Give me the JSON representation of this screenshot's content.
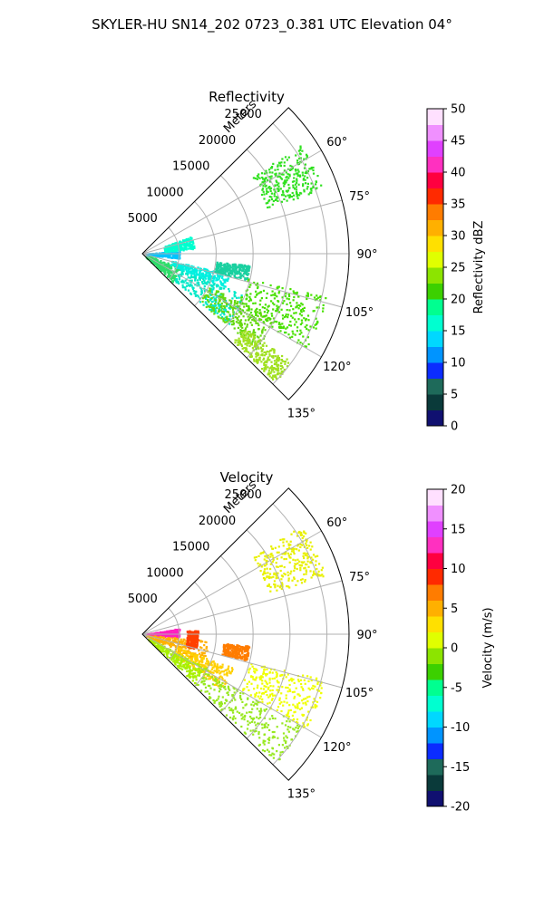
{
  "figure_title": "SKYLER-HU  SN14_202  0723_0.381 UTC Elevation 04°",
  "range_axis_label": "Meters",
  "chart_data": [
    {
      "type": "polar-sector",
      "title": "Reflectivity",
      "theta_range_deg": [
        45,
        135
      ],
      "theta_ticks": [
        "60°",
        "75°",
        "90°",
        "105°",
        "120°",
        "135°"
      ],
      "r_range_m": [
        0,
        28000
      ],
      "r_ticks": [
        "5000",
        "10000",
        "15000",
        "20000",
        "25000"
      ],
      "grid": true,
      "colorbar": {
        "label": "Reflectivity dBZ",
        "range": [
          0,
          50
        ],
        "ticks": [
          "0",
          "5",
          "10",
          "15",
          "20",
          "25",
          "30",
          "35",
          "40",
          "45",
          "50"
        ],
        "palette": [
          "#101070",
          "#0a3a3a",
          "#1e6a5a",
          "#0b2cff",
          "#0094ff",
          "#00d8ff",
          "#00ffd0",
          "#00ff90",
          "#3cd000",
          "#8ce400",
          "#e0ff00",
          "#ffe000",
          "#ffb000",
          "#ff7c00",
          "#ff2a00",
          "#ff0040",
          "#ff30c0",
          "#e040ff",
          "#f090ff",
          "#ffe0ff"
        ]
      },
      "regions": [
        {
          "theta": [
            108,
            133
          ],
          "r": [
            500,
            5500
          ],
          "color": "#2fdc6a"
        },
        {
          "theta": [
            112,
            130
          ],
          "r": [
            5500,
            15000
          ],
          "color": "#00e8c8"
        },
        {
          "theta": [
            116,
            130
          ],
          "r": [
            10000,
            20000
          ],
          "color": "#66d810"
        },
        {
          "theta": [
            126,
            134
          ],
          "r": [
            17000,
            25000
          ],
          "color": "#a0e020"
        },
        {
          "theta": [
            103,
            112
          ],
          "r": [
            4000,
            12000
          ],
          "color": "#00f0e0"
        },
        {
          "theta": [
            84,
            97
          ],
          "r": [
            500,
            5000
          ],
          "color": "#00c4ff"
        },
        {
          "theta": [
            70,
            84
          ],
          "r": [
            3000,
            7000
          ],
          "color": "#00ffd0"
        },
        {
          "theta": [
            96,
            104
          ],
          "r": [
            10000,
            14500
          ],
          "color": "#1ad0a0"
        },
        {
          "theta": [
            103,
            120
          ],
          "r": [
            14500,
            25500
          ],
          "color": "#48e000"
        },
        {
          "theta": [
            55,
            70
          ],
          "r": [
            18000,
            26000
          ],
          "color": "#30e020"
        }
      ]
    },
    {
      "type": "polar-sector",
      "title": "Velocity",
      "theta_range_deg": [
        45,
        135
      ],
      "theta_ticks": [
        "60°",
        "75°",
        "90°",
        "105°",
        "120°",
        "135°"
      ],
      "r_range_m": [
        0,
        28000
      ],
      "r_ticks": [
        "5000",
        "10000",
        "15000",
        "20000",
        "25000"
      ],
      "grid": true,
      "colorbar": {
        "label": "Velocity (m/s)",
        "range": [
          -20,
          20
        ],
        "ticks": [
          "-20",
          "-15",
          "-10",
          "-5",
          "0",
          "5",
          "10",
          "15",
          "20"
        ],
        "palette": [
          "#101070",
          "#0a3a3a",
          "#1e6a5a",
          "#0b2cff",
          "#0094ff",
          "#00d8ff",
          "#00ffd0",
          "#00ff90",
          "#3cd000",
          "#8ce400",
          "#e0ff00",
          "#ffe000",
          "#ffb000",
          "#ff7c00",
          "#ff2a00",
          "#ff0040",
          "#ff30c0",
          "#e040ff",
          "#f090ff",
          "#ffe0ff"
        ]
      },
      "regions": [
        {
          "theta": [
            80,
            95
          ],
          "r": [
            500,
            5000
          ],
          "color": "#ff20c0"
        },
        {
          "theta": [
            95,
            115
          ],
          "r": [
            500,
            9000
          ],
          "color": "#ffb000"
        },
        {
          "theta": [
            110,
            125
          ],
          "r": [
            5000,
            13000
          ],
          "color": "#ffd000"
        },
        {
          "theta": [
            118,
            133
          ],
          "r": [
            1000,
            10000
          ],
          "color": "#a8f000"
        },
        {
          "theta": [
            120,
            134
          ],
          "r": [
            10000,
            25000
          ],
          "color": "#98e820"
        },
        {
          "theta": [
            85,
            105
          ],
          "r": [
            6000,
            7500
          ],
          "color": "#ff4000"
        },
        {
          "theta": [
            96,
            104
          ],
          "r": [
            11000,
            14500
          ],
          "color": "#ff7c00"
        },
        {
          "theta": [
            104,
            120
          ],
          "r": [
            15000,
            25500
          ],
          "color": "#f0ff00"
        },
        {
          "theta": [
            55,
            72
          ],
          "r": [
            18000,
            26000
          ],
          "color": "#e8f000"
        }
      ]
    }
  ]
}
